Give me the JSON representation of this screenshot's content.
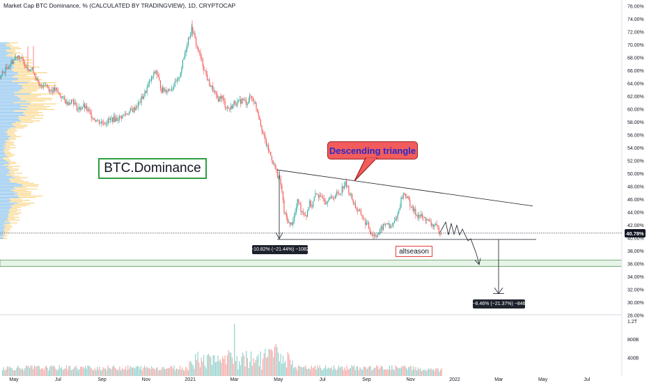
{
  "header": {
    "title": "Market Cap BTC Dominance, % (CALCULATED BY TRADINGVIEW), 1D, CRYPTOCAP"
  },
  "annotations": {
    "main_label": "BTC.Dominance",
    "callout": "Descending triangle",
    "target_label": "altseason",
    "measure_left": "−10.82% (−21.44%) −1082",
    "measure_right": "−8.46% (−21.37%) −846",
    "last_price": "40.78%"
  },
  "colors": {
    "up": "#26a69a",
    "down": "#ef5350",
    "profile_blue": "#5aa9e6",
    "profile_orange": "#f5c04a",
    "support_zone": "#c8e6c9",
    "callout_fill": "#f25c5c",
    "callout_text": "#2929c8",
    "label_border": "#2e9e3f"
  },
  "chart_data": {
    "type": "candlestick",
    "x_ticks": [
      "May",
      "Jul",
      "Sep",
      "Nov",
      "2021",
      "Mar",
      "May",
      "Jul",
      "Sep",
      "Nov",
      "2022",
      "Mar",
      "May",
      "Jul"
    ],
    "y_ticks": [
      "76.00%",
      "74.00%",
      "72.00%",
      "70.00%",
      "68.00%",
      "66.00%",
      "64.00%",
      "62.00%",
      "60.00%",
      "58.00%",
      "56.00%",
      "54.00%",
      "52.00%",
      "50.00%",
      "48.00%",
      "46.00%",
      "44.00%",
      "42.00%",
      "40.00%",
      "38.00%",
      "36.00%",
      "34.00%",
      "32.00%",
      "30.00%",
      "28.00%"
    ],
    "ylim": [
      28,
      76
    ],
    "volume_ticks": [
      "1.2T",
      "800B",
      "400B"
    ],
    "volume_ylim": [
      0,
      1.3
    ],
    "price_path": [
      [
        0,
        65.0
      ],
      [
        10,
        66.5
      ],
      [
        18,
        67.5
      ],
      [
        25,
        68.5
      ],
      [
        32,
        67.5
      ],
      [
        40,
        66.5
      ],
      [
        48,
        66.0
      ],
      [
        56,
        63.5
      ],
      [
        64,
        64.0
      ],
      [
        72,
        63.0
      ],
      [
        80,
        63.0
      ],
      [
        88,
        62.0
      ],
      [
        96,
        61.0
      ],
      [
        104,
        61.5
      ],
      [
        112,
        60.0
      ],
      [
        120,
        60.5
      ],
      [
        128,
        59.5
      ],
      [
        136,
        58.5
      ],
      [
        144,
        58.0
      ],
      [
        152,
        58.0
      ],
      [
        160,
        58.5
      ],
      [
        168,
        58.5
      ],
      [
        176,
        59.0
      ],
      [
        184,
        59.5
      ],
      [
        192,
        60.0
      ],
      [
        200,
        61.0
      ],
      [
        208,
        62.5
      ],
      [
        216,
        64.5
      ],
      [
        224,
        66.0
      ],
      [
        232,
        63.0
      ],
      [
        240,
        63.0
      ],
      [
        248,
        63.5
      ],
      [
        256,
        64.5
      ],
      [
        264,
        68.0
      ],
      [
        270,
        71.0
      ],
      [
        276,
        72.5
      ],
      [
        282,
        70.0
      ],
      [
        288,
        68.0
      ],
      [
        294,
        66.0
      ],
      [
        300,
        64.0
      ],
      [
        306,
        63.0
      ],
      [
        312,
        61.5
      ],
      [
        318,
        62.0
      ],
      [
        324,
        60.5
      ],
      [
        330,
        60.0
      ],
      [
        336,
        61.0
      ],
      [
        342,
        61.0
      ],
      [
        348,
        61.5
      ],
      [
        354,
        61.0
      ],
      [
        360,
        62.0
      ],
      [
        366,
        61.0
      ],
      [
        372,
        59.0
      ],
      [
        378,
        56.0
      ],
      [
        384,
        54.0
      ],
      [
        390,
        52.5
      ],
      [
        396,
        50.5
      ],
      [
        400,
        49.5
      ],
      [
        404,
        48.0
      ],
      [
        408,
        44.0
      ],
      [
        412,
        43.0
      ],
      [
        416,
        42.0
      ],
      [
        420,
        42.5
      ],
      [
        424,
        44.0
      ],
      [
        428,
        46.0
      ],
      [
        432,
        44.5
      ],
      [
        436,
        44.0
      ],
      [
        440,
        43.5
      ],
      [
        444,
        45.5
      ],
      [
        448,
        45.0
      ],
      [
        452,
        46.5
      ],
      [
        456,
        47.0
      ],
      [
        460,
        46.0
      ],
      [
        464,
        46.5
      ],
      [
        468,
        45.5
      ],
      [
        472,
        46.5
      ],
      [
        476,
        46.0
      ],
      [
        480,
        46.5
      ],
      [
        484,
        47.0
      ],
      [
        488,
        47.0
      ],
      [
        492,
        48.0
      ],
      [
        496,
        48.5
      ],
      [
        500,
        47.5
      ],
      [
        504,
        46.5
      ],
      [
        508,
        45.5
      ],
      [
        512,
        44.5
      ],
      [
        516,
        44.0
      ],
      [
        520,
        43.5
      ],
      [
        524,
        42.5
      ],
      [
        528,
        42.0
      ],
      [
        532,
        41.0
      ],
      [
        536,
        40.5
      ],
      [
        540,
        40.5
      ],
      [
        544,
        40.8
      ],
      [
        548,
        41.5
      ],
      [
        552,
        42.0
      ],
      [
        556,
        42.5
      ],
      [
        560,
        41.5
      ],
      [
        564,
        42.0
      ],
      [
        568,
        43.0
      ],
      [
        572,
        44.0
      ],
      [
        576,
        46.0
      ],
      [
        580,
        47.0
      ],
      [
        584,
        46.5
      ],
      [
        588,
        45.5
      ],
      [
        592,
        44.5
      ],
      [
        596,
        44.0
      ],
      [
        600,
        43.5
      ],
      [
        604,
        43.5
      ],
      [
        608,
        43.0
      ],
      [
        612,
        43.0
      ],
      [
        616,
        42.5
      ],
      [
        620,
        42.0
      ],
      [
        624,
        42.0
      ],
      [
        628,
        41.5
      ],
      [
        632,
        41.0
      ],
      [
        634,
        40.8
      ]
    ],
    "resistance_line": {
      "from": [
        398,
        50.6
      ],
      "to": [
        765,
        45.0
      ]
    },
    "support_line": {
      "from": [
        398,
        39.8
      ],
      "to": [
        770,
        39.8
      ]
    },
    "target_zone": [
      35.6,
      36.6
    ]
  }
}
